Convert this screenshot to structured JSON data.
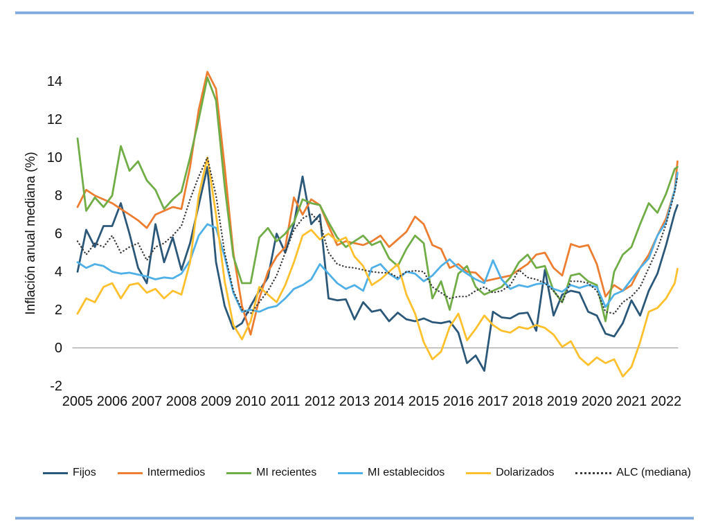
{
  "chart_data": {
    "type": "line",
    "title": "",
    "ylabel": "Inflación anual mediana (%)",
    "xlabel": "",
    "y_ticks": [
      14,
      12,
      10,
      8,
      6,
      4,
      2,
      0,
      -2
    ],
    "ylim": [
      -2.6,
      15.2
    ],
    "x_tick_labels": [
      "2005",
      "2006",
      "2007",
      "2008",
      "2009",
      "2010",
      "2011",
      "2012",
      "2013",
      "2014",
      "2015",
      "2016",
      "2017",
      "2018",
      "2019",
      "2020",
      "2021",
      "2022"
    ],
    "grid": false,
    "zero_line": true,
    "legend_position": "bottom",
    "axis_line_color": "#a0a0a0",
    "x": [
      2005,
      2005.25,
      2005.5,
      2005.75,
      2006,
      2006.25,
      2006.5,
      2006.75,
      2007,
      2007.25,
      2007.5,
      2007.75,
      2008,
      2008.25,
      2008.5,
      2008.75,
      2009,
      2009.25,
      2009.5,
      2009.75,
      2010,
      2010.25,
      2010.5,
      2010.75,
      2011,
      2011.25,
      2011.5,
      2011.75,
      2012,
      2012.25,
      2012.5,
      2012.75,
      2013,
      2013.25,
      2013.5,
      2013.75,
      2014,
      2014.25,
      2014.5,
      2014.75,
      2015,
      2015.25,
      2015.5,
      2015.75,
      2016,
      2016.25,
      2016.5,
      2016.75,
      2017,
      2017.25,
      2017.5,
      2017.75,
      2018,
      2018.25,
      2018.5,
      2018.75,
      2019,
      2019.25,
      2019.5,
      2019.75,
      2020,
      2020.25,
      2020.5,
      2020.75,
      2021,
      2021.25,
      2021.5,
      2021.75,
      2022,
      2022.25,
      2022.33
    ],
    "series": [
      {
        "name": "Fijos",
        "color": "#2B5878",
        "style": "solid",
        "values": [
          4.0,
          6.2,
          5.3,
          6.4,
          6.4,
          7.6,
          6.0,
          4.2,
          3.4,
          6.5,
          4.5,
          5.8,
          4.1,
          5.5,
          7.5,
          9.5,
          4.5,
          2.2,
          1.0,
          1.3,
          2.2,
          3.0,
          3.7,
          6.0,
          5.0,
          6.5,
          9.0,
          6.5,
          7.0,
          2.6,
          2.5,
          2.55,
          1.5,
          2.4,
          1.9,
          2.0,
          1.4,
          1.85,
          1.5,
          1.4,
          1.55,
          1.35,
          1.3,
          1.4,
          0.8,
          -0.8,
          -0.4,
          -1.2,
          1.9,
          1.6,
          1.55,
          1.8,
          1.85,
          0.9,
          4.1,
          1.7,
          2.8,
          3.0,
          2.9,
          1.9,
          1.7,
          0.75,
          0.6,
          1.3,
          2.5,
          1.7,
          3.0,
          3.9,
          5.4,
          7.1,
          7.5
        ]
      },
      {
        "name": "Intermedios",
        "color": "#ED7D31",
        "style": "solid",
        "values": [
          7.4,
          8.3,
          8.0,
          7.8,
          7.6,
          7.3,
          7.0,
          6.7,
          6.3,
          7.0,
          7.2,
          7.4,
          7.3,
          9.5,
          12.5,
          14.5,
          13.6,
          9.5,
          5.0,
          2.2,
          0.7,
          2.6,
          4.0,
          4.8,
          5.3,
          7.9,
          7.0,
          7.8,
          7.5,
          6.4,
          5.4,
          5.6,
          5.5,
          5.4,
          5.6,
          5.9,
          5.3,
          5.7,
          6.1,
          6.9,
          6.5,
          5.4,
          5.2,
          4.2,
          4.4,
          4.0,
          3.95,
          3.5,
          3.6,
          3.7,
          3.8,
          4.1,
          4.4,
          4.9,
          5.0,
          4.2,
          3.8,
          5.45,
          5.3,
          5.4,
          4.4,
          2.7,
          3.3,
          3.0,
          3.3,
          4.2,
          4.9,
          5.9,
          6.8,
          8.3,
          9.8
        ]
      },
      {
        "name": "MI recientes",
        "color": "#70AD47",
        "style": "solid",
        "values": [
          11.0,
          7.2,
          7.9,
          7.4,
          8.0,
          10.6,
          9.3,
          9.8,
          8.8,
          8.3,
          7.3,
          7.8,
          8.2,
          10.0,
          12.0,
          14.2,
          13.0,
          8.5,
          4.8,
          3.4,
          3.4,
          5.8,
          6.3,
          5.6,
          6.0,
          6.6,
          7.8,
          7.6,
          7.5,
          6.6,
          5.8,
          5.3,
          5.6,
          5.9,
          5.4,
          5.6,
          4.7,
          4.3,
          5.2,
          5.9,
          5.5,
          2.6,
          3.5,
          2.0,
          3.9,
          4.3,
          3.2,
          2.8,
          3.0,
          3.2,
          3.7,
          4.5,
          4.9,
          4.2,
          4.3,
          3.0,
          2.4,
          3.8,
          3.9,
          3.5,
          3.3,
          1.4,
          4.0,
          4.9,
          5.3,
          6.5,
          7.6,
          7.1,
          8.1,
          9.4,
          9.5
        ]
      },
      {
        "name": "MI establecidos",
        "color": "#4FB0E8",
        "style": "solid",
        "values": [
          4.5,
          4.2,
          4.4,
          4.3,
          4.0,
          3.9,
          3.95,
          3.85,
          3.75,
          3.6,
          3.7,
          3.65,
          3.9,
          4.6,
          5.9,
          6.5,
          6.3,
          4.8,
          2.9,
          1.9,
          2.0,
          1.9,
          2.1,
          2.2,
          2.6,
          3.1,
          3.3,
          3.6,
          4.4,
          3.9,
          3.4,
          3.1,
          3.3,
          3.0,
          4.2,
          4.4,
          3.9,
          3.6,
          4.0,
          3.9,
          3.5,
          3.8,
          4.3,
          4.65,
          4.2,
          3.9,
          3.6,
          3.4,
          4.6,
          3.6,
          3.1,
          3.3,
          3.2,
          3.35,
          3.4,
          3.1,
          2.95,
          3.3,
          3.15,
          3.3,
          3.2,
          2.15,
          2.8,
          3.0,
          3.6,
          4.2,
          4.7,
          5.9,
          6.6,
          8.3,
          9.2
        ]
      },
      {
        "name": "Dolarizados",
        "color": "#FFC02E",
        "style": "solid",
        "values": [
          1.8,
          2.6,
          2.4,
          3.2,
          3.4,
          2.6,
          3.3,
          3.4,
          2.9,
          3.1,
          2.6,
          3.0,
          2.8,
          4.5,
          8.0,
          10.0,
          7.0,
          3.5,
          1.2,
          0.45,
          1.4,
          3.2,
          2.8,
          2.4,
          3.3,
          4.5,
          5.9,
          6.2,
          5.7,
          6.0,
          5.6,
          5.8,
          4.8,
          4.3,
          3.3,
          3.6,
          4.0,
          4.4,
          2.8,
          1.8,
          0.3,
          -0.6,
          -0.2,
          1.1,
          1.8,
          0.4,
          1.0,
          1.7,
          1.2,
          0.9,
          0.8,
          1.1,
          1.0,
          1.2,
          1.05,
          0.7,
          0.05,
          0.35,
          -0.5,
          -0.9,
          -0.5,
          -0.8,
          -0.6,
          -1.5,
          -1.0,
          0.3,
          1.9,
          2.1,
          2.6,
          3.4,
          4.15
        ]
      },
      {
        "name": "ALC (mediana)",
        "color": "#3b3b3b",
        "style": "dotted",
        "values": [
          5.6,
          4.9,
          5.5,
          5.3,
          5.9,
          5.0,
          5.3,
          5.5,
          4.6,
          5.3,
          5.5,
          5.9,
          6.4,
          7.8,
          9.0,
          10.0,
          8.0,
          5.0,
          3.0,
          2.0,
          1.8,
          2.4,
          3.0,
          3.8,
          5.0,
          6.2,
          6.8,
          7.05,
          6.6,
          5.0,
          4.4,
          4.25,
          4.2,
          4.1,
          4.0,
          3.95,
          3.95,
          3.7,
          4.0,
          4.05,
          4.0,
          3.2,
          2.9,
          2.6,
          2.7,
          2.7,
          3.0,
          3.2,
          2.9,
          3.0,
          3.3,
          4.1,
          3.7,
          3.6,
          3.4,
          3.0,
          2.4,
          3.5,
          3.5,
          3.4,
          3.0,
          1.9,
          1.8,
          2.4,
          2.7,
          3.2,
          4.2,
          5.2,
          6.5,
          8.2,
          9.0
        ]
      }
    ]
  },
  "decoration": {
    "rule_color": "#7FA8DC"
  }
}
